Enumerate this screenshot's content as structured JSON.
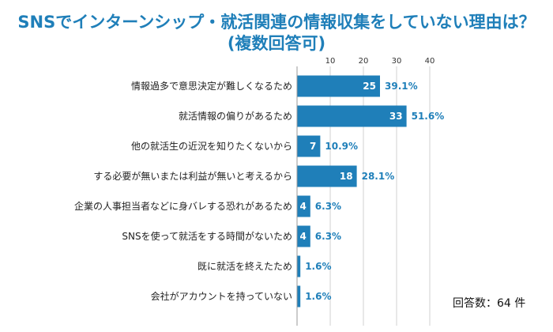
{
  "title_line1": "SNSでインターンシップ・就活関連の情報収集をしていない理由は？",
  "title_line2": "(複数回答可)",
  "note": "回答数：64 件",
  "colors": {
    "bar": "#1f7fb9",
    "title": "#1f7fb9",
    "grid": "#d0d0d0"
  },
  "chart_data": {
    "type": "bar",
    "orientation": "horizontal",
    "title": "SNSでインターンシップ・就活関連の情報収集をしていない理由は？(複数回答可)",
    "xlim": [
      0,
      40
    ],
    "xticks": [
      10,
      20,
      30,
      40
    ],
    "grid": true,
    "categories": [
      "情報過多で意思決定が難しくなるため",
      "就活情報の偏りがあるため",
      "他の就活生の近況を知りたくないから",
      "する必要が無いまたは利益が無いと考えるから",
      "企業の人事担当者などに身バレする恐れがあるため",
      "SNSを使って就活をする時間がないため",
      "既に就活を終えたため",
      "会社がアカウントを持っていない"
    ],
    "values": [
      25,
      33,
      7,
      18,
      4,
      4,
      1,
      1
    ],
    "percent_labels": [
      "39.1%",
      "51.6%",
      "10.9%",
      "28.1%",
      "6.3%",
      "6.3%",
      "1.6%",
      "1.6%"
    ]
  }
}
